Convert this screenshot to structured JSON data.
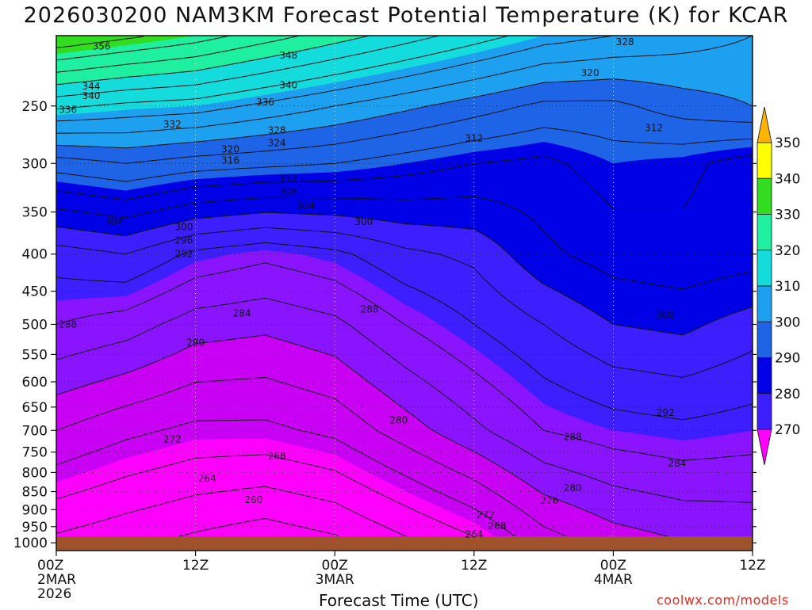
{
  "title": "2026030200 NAM3KM Forecast Potential Temperature (K) for KCAR",
  "credit": "coolwx.com/models",
  "colors": {
    "bands": [
      "#ff00ff",
      "#c800f4",
      "#8a14ff",
      "#3c1eff",
      "#0000e6",
      "#1e64e6",
      "#1ea0f0",
      "#14dcdc",
      "#1ef0a0",
      "#32dc1e",
      "#b4f01e",
      "#ffff00",
      "#ffb400"
    ],
    "surface": "#a0522d"
  },
  "chart_data": {
    "type": "contour-cross-section",
    "title": "2026030200 NAM3KM Forecast Potential Temperature (K) for KCAR",
    "xlabel": "Forecast Time (UTC)",
    "ylabel": "",
    "variable": "Potential Temperature",
    "units": "K",
    "y_axis": {
      "scale": "log-pressure",
      "range": [
        1025,
        200
      ],
      "ticks": [
        250,
        300,
        350,
        400,
        450,
        500,
        550,
        600,
        650,
        700,
        750,
        800,
        850,
        900,
        950,
        1000
      ]
    },
    "x_axis": {
      "range_hours": [
        0,
        60
      ],
      "ticks": [
        {
          "hour": 0,
          "lines": [
            "00Z",
            "2MAR",
            "2026"
          ]
        },
        {
          "hour": 12,
          "lines": [
            "12Z"
          ]
        },
        {
          "hour": 24,
          "lines": [
            "00Z",
            "3MAR"
          ]
        },
        {
          "hour": 36,
          "lines": [
            "12Z"
          ]
        },
        {
          "hour": 48,
          "lines": [
            "00Z",
            "4MAR"
          ]
        },
        {
          "hour": 60,
          "lines": [
            "12Z"
          ]
        }
      ]
    },
    "colorbar": {
      "ticks": [
        270,
        280,
        290,
        300,
        310,
        320,
        330,
        340,
        350
      ],
      "extend": "both"
    },
    "isentrope_levels": [
      256,
      260,
      264,
      268,
      272,
      276,
      280,
      284,
      288,
      292,
      296,
      300,
      304,
      308,
      312,
      316,
      320,
      324,
      328,
      332,
      336,
      340,
      344,
      348,
      352,
      356,
      360
    ],
    "profile_hours": [
      0,
      6,
      12,
      18,
      24,
      30,
      36,
      42,
      48,
      54,
      60
    ],
    "theta_1000": [
      262,
      260,
      258,
      256,
      258,
      262,
      266,
      273,
      277,
      279,
      280
    ],
    "theta_700": [
      276,
      273,
      271,
      271,
      273,
      278,
      283,
      288,
      290,
      291,
      290
    ],
    "theta_500": [
      288,
      286,
      282,
      281,
      283,
      288,
      292,
      296,
      300,
      301,
      298
    ],
    "theta_400": [
      294,
      296,
      291,
      289,
      291,
      295,
      297,
      303,
      306,
      307,
      306
    ],
    "theta_300": [
      314,
      316,
      314,
      313,
      312,
      310,
      308,
      307,
      310,
      309,
      306
    ],
    "theta_250": [
      333,
      331,
      330,
      327,
      324,
      321,
      318,
      315,
      315,
      318,
      320
    ],
    "theta_200": [
      356,
      353,
      350,
      346,
      342,
      338,
      334,
      330,
      328,
      326,
      324
    ],
    "contour_labels": [
      {
        "value": "356",
        "hour": 3.9,
        "p": 207
      },
      {
        "value": "348",
        "hour": 20.0,
        "p": 213
      },
      {
        "value": "344",
        "hour": 3.0,
        "p": 235
      },
      {
        "value": "340",
        "hour": 3.0,
        "p": 242
      },
      {
        "value": "340",
        "hour": 20.0,
        "p": 234
      },
      {
        "value": "336",
        "hour": 1.0,
        "p": 253
      },
      {
        "value": "336",
        "hour": 18.0,
        "p": 247
      },
      {
        "value": "332",
        "hour": 10.0,
        "p": 265
      },
      {
        "value": "328",
        "hour": 19.0,
        "p": 270
      },
      {
        "value": "328",
        "hour": 49.0,
        "p": 204
      },
      {
        "value": "324",
        "hour": 19.0,
        "p": 281
      },
      {
        "value": "320",
        "hour": 15.0,
        "p": 287
      },
      {
        "value": "320",
        "hour": 46.0,
        "p": 225
      },
      {
        "value": "316",
        "hour": 15.0,
        "p": 297
      },
      {
        "value": "312",
        "hour": 20.0,
        "p": 315
      },
      {
        "value": "312",
        "hour": 36.0,
        "p": 277
      },
      {
        "value": "312",
        "hour": 51.5,
        "p": 268
      },
      {
        "value": "308",
        "hour": 20.0,
        "p": 328
      },
      {
        "value": "304",
        "hour": 21.5,
        "p": 343
      },
      {
        "value": "304",
        "hour": 5.0,
        "p": 361
      },
      {
        "value": "300",
        "hour": 11.0,
        "p": 367
      },
      {
        "value": "300",
        "hour": 26.5,
        "p": 361
      },
      {
        "value": "300",
        "hour": 52.5,
        "p": 485
      },
      {
        "value": "296",
        "hour": 11.0,
        "p": 383
      },
      {
        "value": "292",
        "hour": 11.0,
        "p": 400
      },
      {
        "value": "292",
        "hour": 52.5,
        "p": 662
      },
      {
        "value": "288",
        "hour": 1.0,
        "p": 500
      },
      {
        "value": "288",
        "hour": 27.0,
        "p": 477
      },
      {
        "value": "288",
        "hour": 44.5,
        "p": 715
      },
      {
        "value": "284",
        "hour": 16.0,
        "p": 483
      },
      {
        "value": "284",
        "hour": 53.5,
        "p": 777
      },
      {
        "value": "280",
        "hour": 12.0,
        "p": 530
      },
      {
        "value": "280",
        "hour": 29.5,
        "p": 678
      },
      {
        "value": "280",
        "hour": 44.5,
        "p": 840
      },
      {
        "value": "276",
        "hour": 42.5,
        "p": 875
      },
      {
        "value": "272",
        "hour": 10.0,
        "p": 720
      },
      {
        "value": "272",
        "hour": 37.0,
        "p": 915
      },
      {
        "value": "268",
        "hour": 19.0,
        "p": 760
      },
      {
        "value": "268",
        "hour": 38.0,
        "p": 948
      },
      {
        "value": "264",
        "hour": 13.0,
        "p": 815
      },
      {
        "value": "264",
        "hour": 36.0,
        "p": 973
      },
      {
        "value": "260",
        "hour": 17.0,
        "p": 873
      }
    ]
  }
}
